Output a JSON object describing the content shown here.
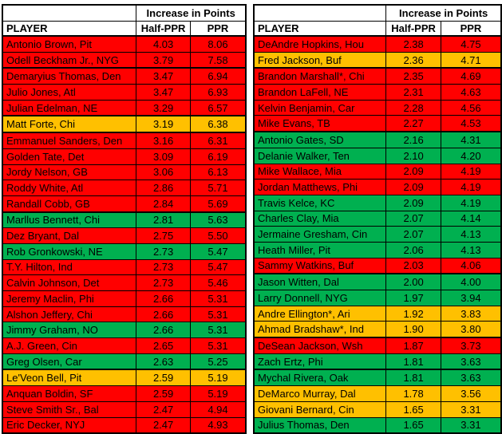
{
  "colors": {
    "red": "#FF0000",
    "orange": "#FFC000",
    "green": "#00B050",
    "border": "#000000",
    "header_bg": "#FFFFFF",
    "text": "#000000"
  },
  "chart_data": [
    {
      "type": "table",
      "title": "Increase in Points",
      "columns": [
        "PLAYER",
        "Half-PPR",
        "PPR"
      ],
      "rows": [
        {
          "player": "Antonio Brown, Pit",
          "half_ppr": "4.03",
          "ppr": "8.06",
          "color": "red",
          "thick_bottom": false
        },
        {
          "player": "Odell Beckham Jr., NYG",
          "half_ppr": "3.79",
          "ppr": "7.58",
          "color": "red",
          "thick_bottom": true
        },
        {
          "player": "Demaryius Thomas, Den",
          "half_ppr": "3.47",
          "ppr": "6.94",
          "color": "red",
          "thick_bottom": false
        },
        {
          "player": "Julio Jones, Atl",
          "half_ppr": "3.47",
          "ppr": "6.93",
          "color": "red",
          "thick_bottom": false
        },
        {
          "player": "Julian Edelman, NE",
          "half_ppr": "3.29",
          "ppr": "6.57",
          "color": "red",
          "thick_bottom": true
        },
        {
          "player": "Matt Forte, Chi",
          "half_ppr": "3.19",
          "ppr": "6.38",
          "color": "orange",
          "thick_bottom": true
        },
        {
          "player": "Emmanuel Sanders, Den",
          "half_ppr": "3.16",
          "ppr": "6.31",
          "color": "red",
          "thick_bottom": false
        },
        {
          "player": "Golden Tate, Det",
          "half_ppr": "3.09",
          "ppr": "6.19",
          "color": "red",
          "thick_bottom": false
        },
        {
          "player": "Jordy Nelson, GB",
          "half_ppr": "3.06",
          "ppr": "6.13",
          "color": "red",
          "thick_bottom": false
        },
        {
          "player": "Roddy White, Atl",
          "half_ppr": "2.86",
          "ppr": "5.71",
          "color": "red",
          "thick_bottom": false
        },
        {
          "player": "Randall Cobb, GB",
          "half_ppr": "2.84",
          "ppr": "5.69",
          "color": "red",
          "thick_bottom": true
        },
        {
          "player": "Marllus Bennett, Chi",
          "half_ppr": "2.81",
          "ppr": "5.63",
          "color": "green",
          "thick_bottom": false
        },
        {
          "player": "Dez Bryant, Dal",
          "half_ppr": "2.75",
          "ppr": "5.50",
          "color": "red",
          "thick_bottom": false
        },
        {
          "player": "Rob Gronkowski, NE",
          "half_ppr": "2.73",
          "ppr": "5.47",
          "color": "green",
          "thick_bottom": false
        },
        {
          "player": "T.Y. Hilton, Ind",
          "half_ppr": "2.73",
          "ppr": "5.47",
          "color": "red",
          "thick_bottom": false
        },
        {
          "player": "Calvin Johnson, Det",
          "half_ppr": "2.73",
          "ppr": "5.46",
          "color": "red",
          "thick_bottom": false
        },
        {
          "player": "Jeremy Maclin, Phi",
          "half_ppr": "2.66",
          "ppr": "5.31",
          "color": "red",
          "thick_bottom": false
        },
        {
          "player": "Alshon Jeffery, Chi",
          "half_ppr": "2.66",
          "ppr": "5.31",
          "color": "red",
          "thick_bottom": false
        },
        {
          "player": "Jimmy Graham, NO",
          "half_ppr": "2.66",
          "ppr": "5.31",
          "color": "green",
          "thick_bottom": false
        },
        {
          "player": "A.J. Green, Cin",
          "half_ppr": "2.65",
          "ppr": "5.31",
          "color": "red",
          "thick_bottom": false
        },
        {
          "player": "Greg Olsen, Car",
          "half_ppr": "2.63",
          "ppr": "5.25",
          "color": "green",
          "thick_bottom": true
        },
        {
          "player": "Le'Veon Bell, Pit",
          "half_ppr": "2.59",
          "ppr": "5.19",
          "color": "orange",
          "thick_bottom": false
        },
        {
          "player": "Anquan Boldin, SF",
          "half_ppr": "2.59",
          "ppr": "5.19",
          "color": "red",
          "thick_bottom": false
        },
        {
          "player": "Steve Smith Sr., Bal",
          "half_ppr": "2.47",
          "ppr": "4.94",
          "color": "red",
          "thick_bottom": false
        },
        {
          "player": "Eric Decker, NYJ",
          "half_ppr": "2.47",
          "ppr": "4.93",
          "color": "red",
          "thick_bottom": false
        }
      ]
    },
    {
      "type": "table",
      "title": "Increase in Points",
      "columns": [
        "PLAYER",
        "Half-PPR",
        "PPR"
      ],
      "rows": [
        {
          "player": "DeAndre Hopkins, Hou",
          "half_ppr": "2.38",
          "ppr": "4.75",
          "color": "red",
          "thick_bottom": false
        },
        {
          "player": "Fred Jackson, Buf",
          "half_ppr": "2.36",
          "ppr": "4.71",
          "color": "orange",
          "thick_bottom": true
        },
        {
          "player": "Brandon Marshall*, Chi",
          "half_ppr": "2.35",
          "ppr": "4.69",
          "color": "red",
          "thick_bottom": false
        },
        {
          "player": "Brandon LaFell, NE",
          "half_ppr": "2.31",
          "ppr": "4.63",
          "color": "red",
          "thick_bottom": false
        },
        {
          "player": "Kelvin Benjamin, Car",
          "half_ppr": "2.28",
          "ppr": "4.56",
          "color": "red",
          "thick_bottom": false
        },
        {
          "player": "Mike Evans, TB",
          "half_ppr": "2.27",
          "ppr": "4.53",
          "color": "red",
          "thick_bottom": true
        },
        {
          "player": "Antonio Gates, SD",
          "half_ppr": "2.16",
          "ppr": "4.31",
          "color": "green",
          "thick_bottom": false
        },
        {
          "player": "Delanie Walker, Ten",
          "half_ppr": "2.10",
          "ppr": "4.20",
          "color": "green",
          "thick_bottom": false
        },
        {
          "player": "Mike Wallace, Mia",
          "half_ppr": "2.09",
          "ppr": "4.19",
          "color": "red",
          "thick_bottom": false
        },
        {
          "player": "Jordan Matthews, Phi",
          "half_ppr": "2.09",
          "ppr": "4.19",
          "color": "red",
          "thick_bottom": false
        },
        {
          "player": "Travis Kelce, KC",
          "half_ppr": "2.09",
          "ppr": "4.19",
          "color": "green",
          "thick_bottom": false
        },
        {
          "player": "Charles Clay, Mia",
          "half_ppr": "2.07",
          "ppr": "4.14",
          "color": "green",
          "thick_bottom": false
        },
        {
          "player": "Jermaine Gresham, Cin",
          "half_ppr": "2.07",
          "ppr": "4.13",
          "color": "green",
          "thick_bottom": false
        },
        {
          "player": "Heath Miller, Pit",
          "half_ppr": "2.06",
          "ppr": "4.13",
          "color": "green",
          "thick_bottom": false
        },
        {
          "player": "Sammy Watkins, Buf",
          "half_ppr": "2.03",
          "ppr": "4.06",
          "color": "red",
          "thick_bottom": true
        },
        {
          "player": "Jason Witten, Dal",
          "half_ppr": "2.00",
          "ppr": "4.00",
          "color": "green",
          "thick_bottom": false
        },
        {
          "player": "Larry Donnell, NYG",
          "half_ppr": "1.97",
          "ppr": "3.94",
          "color": "green",
          "thick_bottom": false
        },
        {
          "player": "Andre Ellington*, Ari",
          "half_ppr": "1.92",
          "ppr": "3.83",
          "color": "orange",
          "thick_bottom": false
        },
        {
          "player": "Ahmad Bradshaw*, Ind",
          "half_ppr": "1.90",
          "ppr": "3.80",
          "color": "orange",
          "thick_bottom": true
        },
        {
          "player": "DeSean Jackson, Wsh",
          "half_ppr": "1.87",
          "ppr": "3.73",
          "color": "red",
          "thick_bottom": false
        },
        {
          "player": "Zach Ertz, Phi",
          "half_ppr": "1.81",
          "ppr": "3.63",
          "color": "green",
          "thick_bottom": true
        },
        {
          "player": "Mychal Rivera, Oak",
          "half_ppr": "1.81",
          "ppr": "3.63",
          "color": "green",
          "thick_bottom": false
        },
        {
          "player": "DeMarco Murray, Dal",
          "half_ppr": "1.78",
          "ppr": "3.56",
          "color": "orange",
          "thick_bottom": false
        },
        {
          "player": "Giovani Bernard, Cin",
          "half_ppr": "1.65",
          "ppr": "3.31",
          "color": "orange",
          "thick_bottom": false
        },
        {
          "player": "Julius Thomas, Den",
          "half_ppr": "1.65",
          "ppr": "3.31",
          "color": "green",
          "thick_bottom": false
        }
      ]
    }
  ]
}
